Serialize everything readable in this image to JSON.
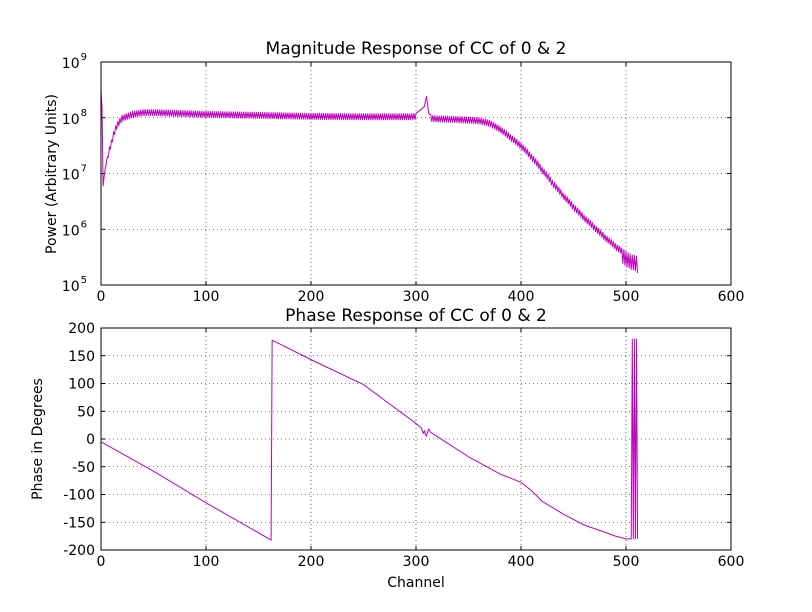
{
  "chart_data": [
    {
      "type": "line",
      "title": "Magnitude Response of CC of 0 & 2",
      "xlabel": "",
      "ylabel": "Power (Arbitrary Units)",
      "yscale": "log",
      "xlim": [
        0,
        600
      ],
      "ylim": [
        100000,
        1000000000
      ],
      "xticks": [
        "0",
        "100",
        "200",
        "300",
        "400",
        "500",
        "600"
      ],
      "xtick_values": [
        0,
        100,
        200,
        300,
        400,
        500,
        600
      ],
      "yticks": [
        {
          "base": "10",
          "exp": "5",
          "value": 100000
        },
        {
          "base": "10",
          "exp": "6",
          "value": 1000000
        },
        {
          "base": "10",
          "exp": "7",
          "value": 10000000
        },
        {
          "base": "10",
          "exp": "8",
          "value": 100000000
        },
        {
          "base": "10",
          "exp": "9",
          "value": 1000000000
        }
      ],
      "grid": true,
      "color": "#bf00bf",
      "ripple_lower_factor": 0.78,
      "envelope": {
        "x": [
          0,
          2,
          5,
          10,
          15,
          20,
          30,
          40,
          50,
          100,
          150,
          200,
          250,
          295,
          300,
          305,
          308,
          310,
          312,
          315,
          320,
          340,
          360,
          370,
          380,
          390,
          400,
          410,
          420,
          430,
          440,
          450,
          460,
          470,
          480,
          490,
          500,
          505,
          510,
          511
        ],
        "y": [
          300000000,
          6000000,
          15000000,
          40000000,
          80000000,
          110000000,
          130000000,
          140000000,
          140000000,
          130000000,
          125000000,
          120000000,
          118000000,
          118000000,
          120000000,
          140000000,
          160000000,
          240000000,
          120000000,
          110000000,
          108000000,
          105000000,
          100000000,
          90000000,
          70000000,
          50000000,
          35000000,
          22000000,
          13000000,
          7500000,
          4500000,
          2800000,
          1800000,
          1200000,
          800000,
          550000,
          400000,
          350000,
          330000,
          300000
        ]
      }
    },
    {
      "type": "line",
      "title": "Phase Response of CC of 0 & 2",
      "xlabel": "Channel",
      "ylabel": "Phase in Degrees",
      "xlim": [
        0,
        600
      ],
      "ylim": [
        -200,
        200
      ],
      "xticks": [
        "0",
        "100",
        "200",
        "300",
        "400",
        "500",
        "600"
      ],
      "xtick_values": [
        0,
        100,
        200,
        300,
        400,
        500,
        600
      ],
      "yticks": [
        "-200",
        "-150",
        "-100",
        "-50",
        "0",
        "50",
        "100",
        "150",
        "200"
      ],
      "ytick_values": [
        -200,
        -150,
        -100,
        -50,
        0,
        50,
        100,
        150,
        200
      ],
      "grid": true,
      "color": "#bf00bf",
      "x": [
        0,
        50,
        100,
        162,
        163,
        200,
        250,
        300,
        305,
        307,
        308,
        309,
        310,
        311,
        312,
        314,
        350,
        380,
        400,
        410,
        420,
        440,
        460,
        480,
        490,
        500,
        505,
        506,
        507,
        508,
        509,
        510,
        511
      ],
      "y": [
        -5,
        -58,
        -115,
        -182,
        178,
        143,
        98,
        28,
        20,
        10,
        15,
        8,
        5,
        12,
        18,
        12,
        -32,
        -63,
        -78,
        -93,
        -112,
        -135,
        -155,
        -168,
        -175,
        -180,
        -180,
        180,
        -180,
        180,
        -180,
        180,
        -180
      ]
    }
  ]
}
